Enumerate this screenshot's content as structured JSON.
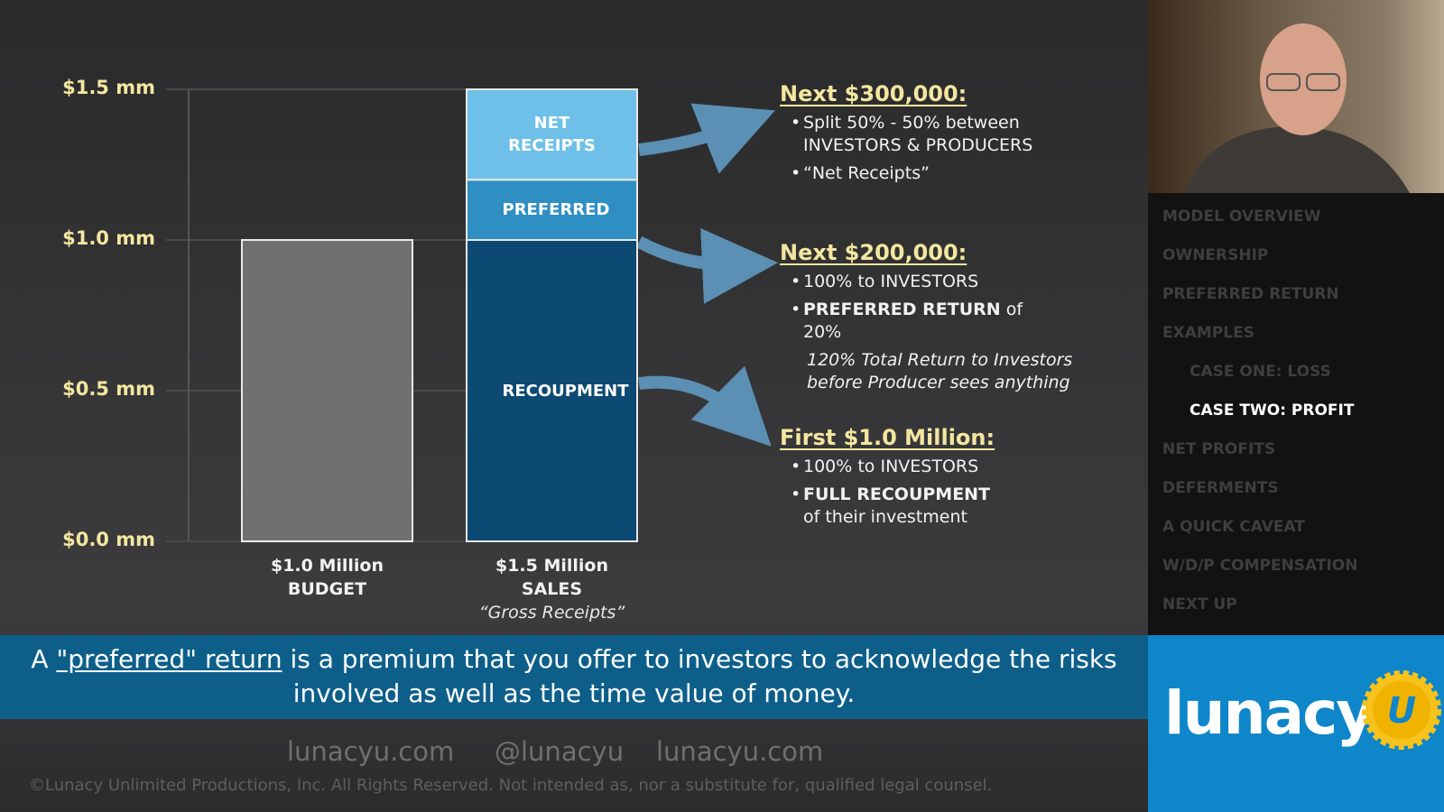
{
  "chart_data": {
    "type": "stacked-bar",
    "categories": [
      "$1.0 Million BUDGET",
      "$1.5 Million SALES"
    ],
    "category_note": "“Gross Receipts”",
    "series": [
      {
        "color": "#707070",
        "values": [
          1.0,
          null
        ]
      },
      {
        "name": "RECOUPMENT",
        "color": "#0d4a73",
        "values": [
          null,
          1.0
        ]
      },
      {
        "name": "PREFERRED",
        "color": "#2f8fc2",
        "values": [
          null,
          0.2
        ]
      },
      {
        "name": "NET RECEIPTS",
        "color": "#6fc0e8",
        "values": [
          null,
          0.3
        ]
      }
    ],
    "ylim": [
      0,
      1.5
    ],
    "yticks": [
      {
        "value": 0,
        "label": "$0.0 mm"
      },
      {
        "value": 0.5,
        "label": "$0.5 mm"
      },
      {
        "value": 1.0,
        "label": "$1.0 mm"
      },
      {
        "value": 1.5,
        "label": "$1.5 mm"
      }
    ],
    "grid": true
  },
  "annotations": [
    {
      "heading": "Next $300,000:",
      "bullets": [
        {
          "text": "Split 50% - 50% between INVESTORS & PRODUCERS"
        },
        {
          "text": "“Net Receipts”"
        }
      ]
    },
    {
      "heading": "Next $200,000:",
      "bullets": [
        {
          "text": "100% to INVESTORS"
        },
        {
          "bold": "PREFERRED RETURN",
          "text": " of 20%"
        }
      ],
      "note": "120% Total Return to Investors before Producer sees anything",
      "note_italic": true
    },
    {
      "heading": "First $1.0 Million:",
      "bullets": [
        {
          "text": "100% to INVESTORS"
        },
        {
          "bold": "FULL RECOUPMENT"
        }
      ],
      "note": "of their investment",
      "note_italic": false
    }
  ],
  "sidebar": {
    "items": [
      {
        "label": "MODEL OVERVIEW"
      },
      {
        "label": "OWNERSHIP"
      },
      {
        "label": "PREFERRED RETURN"
      },
      {
        "label": "EXAMPLES"
      },
      {
        "label": "CASE ONE: LOSS",
        "sub": true
      },
      {
        "label": "CASE TWO: PROFIT",
        "sub": true,
        "active": true
      },
      {
        "label": "NET PROFITS"
      },
      {
        "label": "DEFERMENTS"
      },
      {
        "label": "A QUICK CAVEAT"
      },
      {
        "label": "W/D/P COMPENSATION"
      },
      {
        "label": "NEXT UP"
      }
    ]
  },
  "caption": {
    "before": "A ",
    "link": "\"preferred\" return",
    "after": " is a premium that you offer to investors to acknowledge the risks involved as well as the time value of money."
  },
  "footer": {
    "links": [
      "lunacyu.com",
      "@lunacyu",
      "lunacyu.com"
    ],
    "copyright": "©Lunacy Unlimited Productions, Inc. All Rights Reserved. Not intended as, nor a substitute for, qualified legal counsel."
  },
  "logo": {
    "text": "lunacy",
    "badge": "U"
  }
}
